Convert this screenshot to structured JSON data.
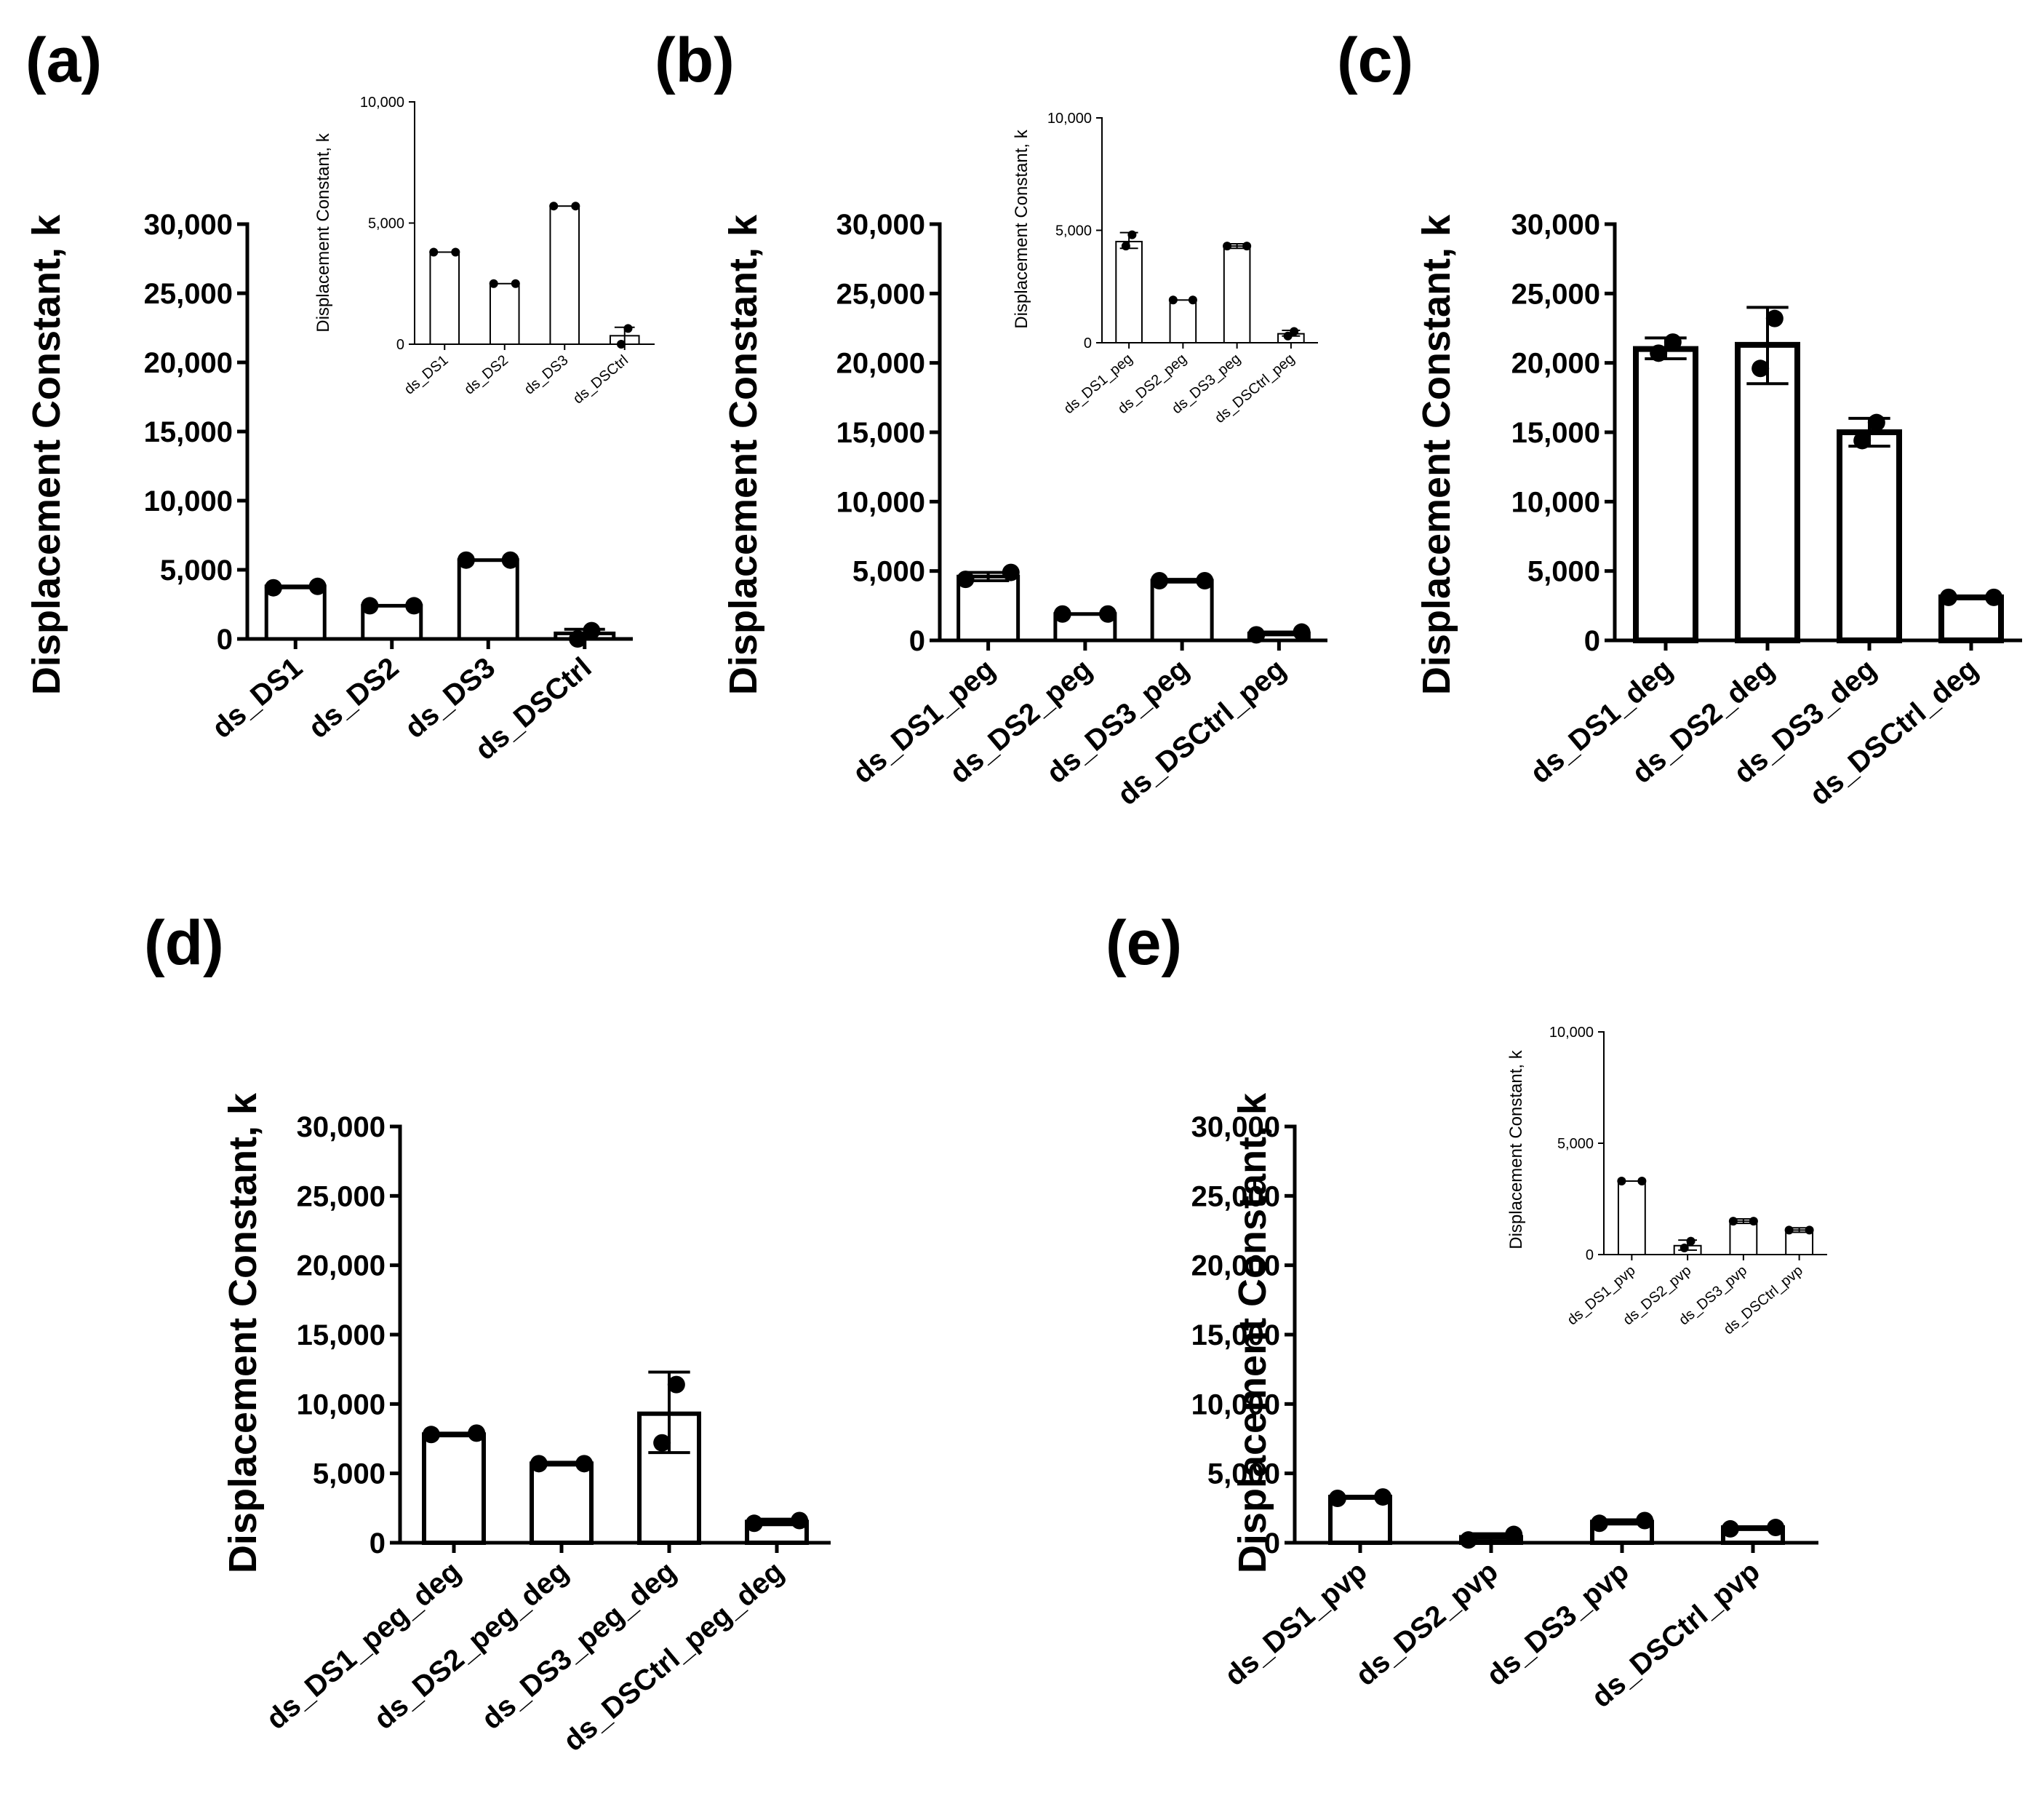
{
  "chart_data": [
    {
      "panel": "(a)",
      "type": "bar",
      "ylabel": "Displacement Constant, k",
      "ylim": [
        0,
        30000
      ],
      "yticks": [
        "0",
        "5,000",
        "10,000",
        "15,000",
        "20,000",
        "25,000",
        "30,000"
      ],
      "ytick_values": [
        0,
        5000,
        10000,
        15000,
        20000,
        25000,
        30000
      ],
      "categories": [
        "ds_DS1",
        "ds_DS2",
        "ds_DS3",
        "ds_DSCtrl"
      ],
      "values": [
        3800,
        2400,
        5700,
        400
      ],
      "points": [
        [
          3700,
          3800
        ],
        [
          2400,
          2400
        ],
        [
          5700,
          5700
        ],
        [
          0,
          600
        ]
      ],
      "error": [
        [
          3700,
          3800
        ],
        [
          2400,
          2400
        ],
        [
          5700,
          5700
        ],
        [
          0,
          700
        ]
      ],
      "inset": {
        "type": "bar",
        "ylabel": "Displacement Constant, k",
        "ylim": [
          0,
          10000
        ],
        "yticks": [
          "0",
          "5,000",
          "10,000"
        ],
        "ytick_values": [
          0,
          5000,
          10000
        ],
        "categories": [
          "ds_DS1",
          "ds_DS2",
          "ds_DS3",
          "ds_DSCtrl"
        ],
        "values": [
          3800,
          2500,
          5700,
          350
        ],
        "points": [
          [
            3800,
            3800
          ],
          [
            2500,
            2500
          ],
          [
            5700,
            5700
          ],
          [
            0,
            650
          ]
        ],
        "error": [
          [
            3800,
            3800
          ],
          [
            2500,
            2500
          ],
          [
            5700,
            5700
          ],
          [
            0,
            700
          ]
        ]
      }
    },
    {
      "panel": "(b)",
      "type": "bar",
      "ylabel": "Displacement Constant, k",
      "ylim": [
        0,
        30000
      ],
      "yticks": [
        "0",
        "5,000",
        "10,000",
        "15,000",
        "20,000",
        "25,000",
        "30,000"
      ],
      "ytick_values": [
        0,
        5000,
        10000,
        15000,
        20000,
        25000,
        30000
      ],
      "categories": [
        "ds_DS1_peg",
        "ds_DS2_peg",
        "ds_DS3_peg",
        "ds_DSCtrl_peg"
      ],
      "values": [
        4600,
        1900,
        4300,
        500
      ],
      "points": [
        [
          4400,
          4900
        ],
        [
          1900,
          1900
        ],
        [
          4300,
          4300
        ],
        [
          400,
          600
        ]
      ],
      "error": [
        [
          4300,
          4900
        ],
        [
          1900,
          1900
        ],
        [
          4200,
          4400
        ],
        [
          400,
          600
        ]
      ],
      "inset": {
        "type": "bar",
        "ylabel": "Displacement Constant, k",
        "ylim": [
          0,
          10000
        ],
        "yticks": [
          "0",
          "5,000",
          "10,000"
        ],
        "ytick_values": [
          0,
          5000,
          10000
        ],
        "categories": [
          "ds_DS1_peg",
          "ds_DS2_peg",
          "ds_DS3_peg",
          "ds_DSCtrl_peg"
        ],
        "values": [
          4500,
          1900,
          4300,
          400
        ],
        "points": [
          [
            4300,
            4800
          ],
          [
            1900,
            1900
          ],
          [
            4300,
            4300
          ],
          [
            300,
            500
          ]
        ],
        "error": [
          [
            4200,
            4900
          ],
          [
            1900,
            1900
          ],
          [
            4200,
            4400
          ],
          [
            300,
            550
          ]
        ]
      }
    },
    {
      "panel": "(c)",
      "type": "bar",
      "ylabel": "Displacement Constant, k",
      "ylim": [
        0,
        30000
      ],
      "yticks": [
        "0",
        "5,000",
        "10,000",
        "15,000",
        "20,000",
        "25,000",
        "30,000"
      ],
      "ytick_values": [
        0,
        5000,
        10000,
        15000,
        20000,
        25000,
        30000
      ],
      "categories": [
        "ds_DS1_deg",
        "ds_DS2_deg",
        "ds_DS3_deg",
        "ds_DSCtrl_deg"
      ],
      "values": [
        21000,
        21300,
        15000,
        3100
      ],
      "points": [
        [
          20700,
          21500
        ],
        [
          19600,
          23200
        ],
        [
          14400,
          15700
        ],
        [
          3100,
          3100
        ]
      ],
      "error": [
        [
          20300,
          21800
        ],
        [
          18500,
          24000
        ],
        [
          14000,
          16000
        ],
        [
          3000,
          3200
        ]
      ]
    },
    {
      "panel": "(d)",
      "type": "bar",
      "ylabel": "Displacement Constant, k",
      "ylim": [
        0,
        30000
      ],
      "yticks": [
        "0",
        "5,000",
        "10,000",
        "15,000",
        "20,000",
        "25,000",
        "30,000"
      ],
      "ytick_values": [
        0,
        5000,
        10000,
        15000,
        20000,
        25000,
        30000
      ],
      "categories": [
        "ds_DS1_peg_deg",
        "ds_DS2_peg_deg",
        "ds_DS3_peg_deg",
        "ds_DSCtrl_peg_deg"
      ],
      "values": [
        7800,
        5700,
        9300,
        1500
      ],
      "points": [
        [
          7800,
          7900
        ],
        [
          5700,
          5700
        ],
        [
          7200,
          11400
        ],
        [
          1400,
          1600
        ]
      ],
      "error": [
        [
          7700,
          7900
        ],
        [
          5600,
          5800
        ],
        [
          6500,
          12300
        ],
        [
          1300,
          1700
        ]
      ]
    },
    {
      "panel": "(e)",
      "type": "bar",
      "ylabel": "Displacement Constant, k",
      "ylim": [
        0,
        30000
      ],
      "yticks": [
        "0",
        "5,000",
        "10,000",
        "15,000",
        "20,000",
        "25,000",
        "30,000"
      ],
      "ytick_values": [
        0,
        5000,
        10000,
        15000,
        20000,
        25000,
        30000
      ],
      "categories": [
        "ds_DS1_pvp",
        "ds_DS2_pvp",
        "ds_DS3_pvp",
        "ds_DSCtrl_pvp"
      ],
      "values": [
        3300,
        400,
        1500,
        1100
      ],
      "points": [
        [
          3200,
          3300
        ],
        [
          200,
          600
        ],
        [
          1400,
          1600
        ],
        [
          1000,
          1100
        ]
      ],
      "error": [
        [
          3200,
          3300
        ],
        [
          150,
          650
        ],
        [
          1350,
          1650
        ],
        [
          950,
          1150
        ]
      ],
      "inset": {
        "type": "bar",
        "ylabel": "Displacement Constant, k",
        "ylim": [
          0,
          10000
        ],
        "yticks": [
          "0",
          "5,000",
          "10,000"
        ],
        "ytick_values": [
          0,
          5000,
          10000
        ],
        "categories": [
          "ds_DS1_pvp",
          "ds_DS2_pvp",
          "ds_DS3_pvp",
          "ds_DSCtrl_pvp"
        ],
        "values": [
          3300,
          400,
          1500,
          1100
        ],
        "points": [
          [
            3300,
            3300
          ],
          [
            300,
            600
          ],
          [
            1500,
            1500
          ],
          [
            1100,
            1100
          ]
        ],
        "error": [
          [
            3300,
            3300
          ],
          [
            200,
            650
          ],
          [
            1400,
            1600
          ],
          [
            1000,
            1200
          ]
        ]
      }
    }
  ]
}
